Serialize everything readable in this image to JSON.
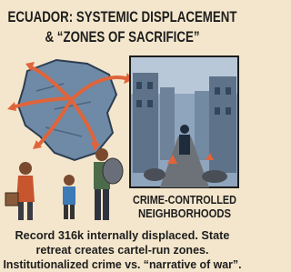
{
  "header": {
    "title_lines": [
      "ECUADOR: SYSTEMIC DISPLACEMENT",
      "& “ZONES OF SACRIFICE”"
    ]
  },
  "panel": {
    "caption_lines": [
      "CRIME-CONTROLLED",
      "NEIGHBORHOODS"
    ]
  },
  "body": {
    "lines": [
      "Record 316k internally displaced. State",
      "retreat creates cartel-run zones.",
      "Institutionalized crime vs. “narrative of war”."
    ]
  }
}
